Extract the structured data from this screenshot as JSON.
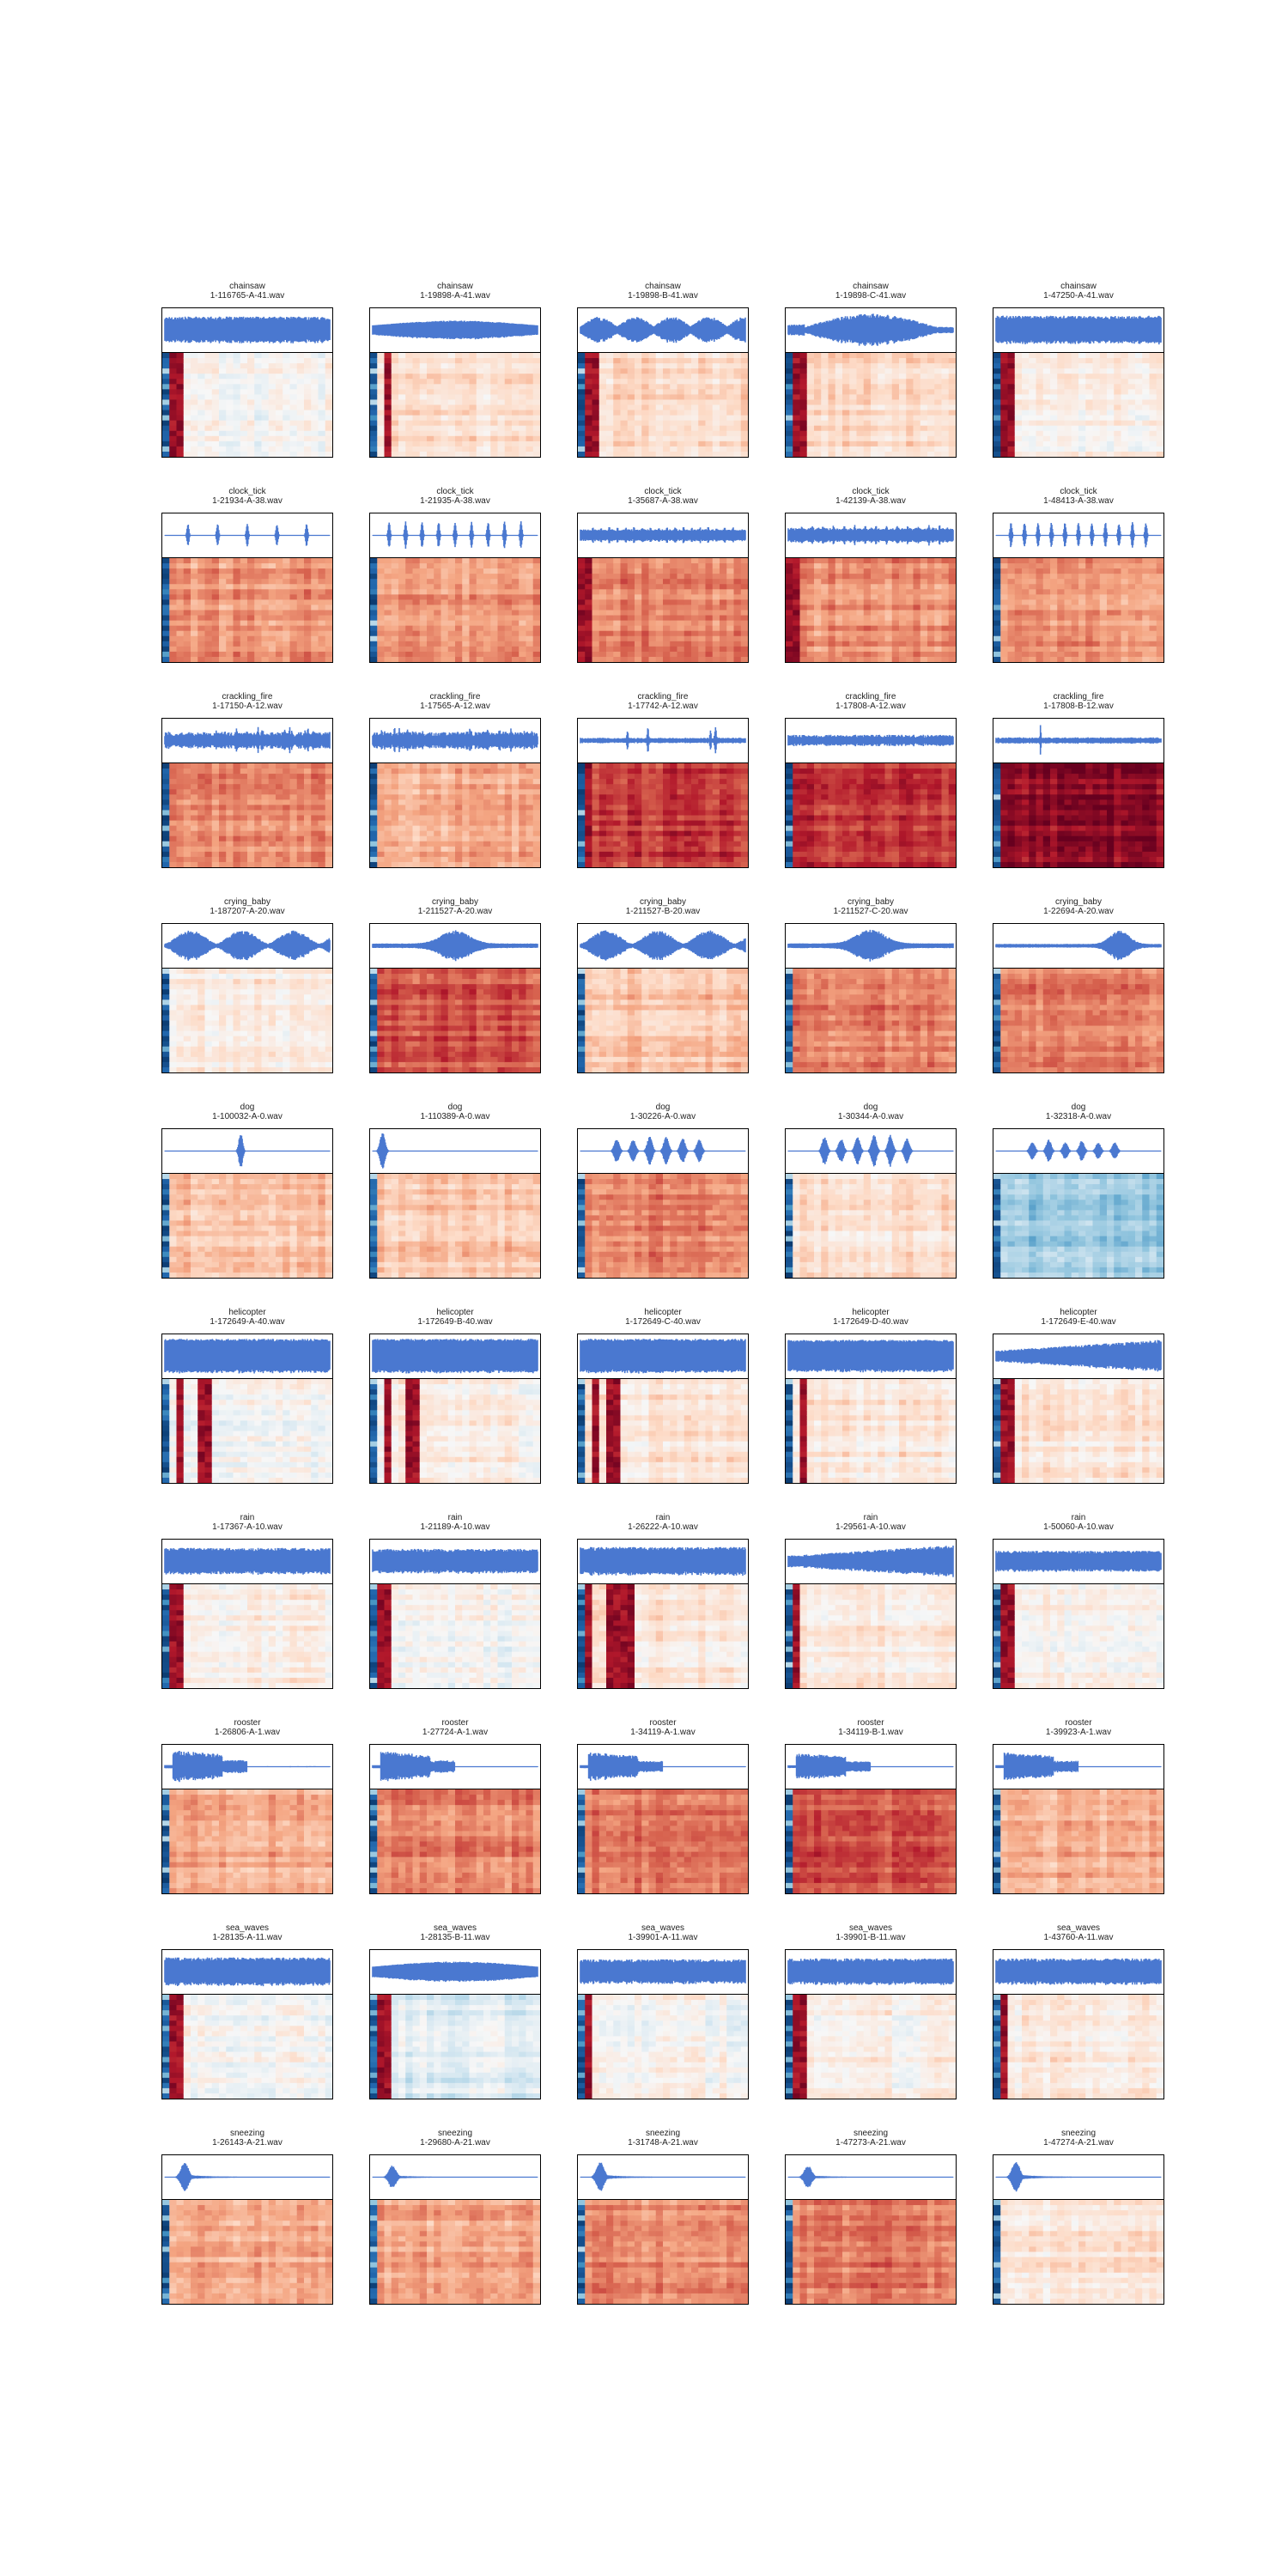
{
  "figure": {
    "rows": 10,
    "cols": 5
  },
  "colors": {
    "waveform": "#4a78d0",
    "colormap": "RdBu_r",
    "axes_border": "#000000",
    "background": "#ffffff"
  },
  "chart_data": {
    "type": "heatmap",
    "description_kind": "grid of audio clips: waveform above MFCC heatmap",
    "panels": [
      {
        "category": "chainsaw",
        "file": "1-116765-A-41.wav",
        "wave": "dense",
        "wave_amp": 0.7,
        "bg": 0.5,
        "red_cols": [
          0.08
        ],
        "blue_left": true
      },
      {
        "category": "chainsaw",
        "file": "1-19898-A-41.wav",
        "wave": "dense_swell",
        "wave_amp": 0.55,
        "bg": 0.58,
        "red_cols": [
          0.1
        ],
        "blue_left": true
      },
      {
        "category": "chainsaw",
        "file": "1-19898-B-41.wav",
        "wave": "bursts",
        "wave_amp": 0.7,
        "bg": 0.6,
        "red_cols": [
          0.08
        ],
        "blue_left": true
      },
      {
        "category": "chainsaw",
        "file": "1-19898-C-41.wav",
        "wave": "swell",
        "wave_amp": 0.85,
        "bg": 0.6,
        "red_cols": [
          0.08
        ],
        "blue_left": true
      },
      {
        "category": "chainsaw",
        "file": "1-47250-A-41.wav",
        "wave": "dense",
        "wave_amp": 0.75,
        "bg": 0.52,
        "red_cols": [
          0.08
        ],
        "blue_left": true
      },
      {
        "category": "clock_tick",
        "file": "1-21934-A-38.wav",
        "wave": "ticks",
        "ticks": 5,
        "wave_amp": 0.65,
        "bg": 0.72,
        "red_cols": [],
        "blue_left": true
      },
      {
        "category": "clock_tick",
        "file": "1-21935-A-38.wav",
        "wave": "ticks",
        "ticks": 9,
        "wave_amp": 0.75,
        "bg": 0.72,
        "red_cols": [],
        "blue_left": true
      },
      {
        "category": "clock_tick",
        "file": "1-35687-A-38.wav",
        "wave": "ticks_dense",
        "ticks": 18,
        "wave_amp": 0.45,
        "bg": 0.75,
        "red_cols": [
          0.05
        ],
        "blue_left": true
      },
      {
        "category": "clock_tick",
        "file": "1-42139-A-38.wav",
        "wave": "ticks_dense",
        "ticks": 14,
        "wave_amp": 0.55,
        "bg": 0.73,
        "red_cols": [
          0.04
        ],
        "blue_left": true
      },
      {
        "category": "clock_tick",
        "file": "1-48413-A-38.wav",
        "wave": "ticks",
        "ticks": 11,
        "wave_amp": 0.7,
        "bg": 0.72,
        "red_cols": [],
        "blue_left": true
      },
      {
        "category": "crackling_fire",
        "file": "1-17150-A-12.wav",
        "wave": "crackle",
        "wave_amp": 0.8,
        "bg": 0.74,
        "red_cols": [],
        "blue_left": true
      },
      {
        "category": "crackling_fire",
        "file": "1-17565-A-12.wav",
        "wave": "crackle",
        "wave_amp": 0.85,
        "bg": 0.7,
        "red_cols": [],
        "blue_left": true
      },
      {
        "category": "crackling_fire",
        "file": "1-17742-A-12.wav",
        "wave": "crackle_sparse",
        "wave_amp": 0.8,
        "bg": 0.85,
        "red_cols": [
          0.06
        ],
        "blue_left": true
      },
      {
        "category": "crackling_fire",
        "file": "1-17808-A-12.wav",
        "wave": "noise_small",
        "wave_amp": 0.3,
        "bg": 0.86,
        "red_cols": [],
        "blue_left": true
      },
      {
        "category": "crackling_fire",
        "file": "1-17808-B-12.wav",
        "wave": "spike_one",
        "wave_amp": 0.9,
        "bg": 0.95,
        "red_cols": [],
        "blue_left": true
      },
      {
        "category": "crying_baby",
        "file": "1-187207-A-20.wav",
        "wave": "cry",
        "wave_amp": 0.8,
        "bg": 0.55,
        "red_cols": [],
        "blue_left": true
      },
      {
        "category": "crying_baby",
        "file": "1-211527-A-20.wav",
        "wave": "cry_mid",
        "wave_amp": 0.75,
        "bg": 0.82,
        "red_cols": [],
        "blue_left": true
      },
      {
        "category": "crying_baby",
        "file": "1-211527-B-20.wav",
        "wave": "cry",
        "wave_amp": 0.8,
        "bg": 0.65,
        "red_cols": [],
        "blue_left": true
      },
      {
        "category": "crying_baby",
        "file": "1-211527-C-20.wav",
        "wave": "cry_mid",
        "wave_amp": 0.8,
        "bg": 0.75,
        "red_cols": [],
        "blue_left": true
      },
      {
        "category": "crying_baby",
        "file": "1-22694-A-20.wav",
        "wave": "cry_end",
        "wave_amp": 0.75,
        "bg": 0.75,
        "red_cols": [],
        "blue_left": true
      },
      {
        "category": "dog",
        "file": "1-100032-A-0.wav",
        "wave": "bark_one",
        "wave_amp": 0.95,
        "bg": 0.65,
        "red_cols": [],
        "blue_left": true
      },
      {
        "category": "dog",
        "file": "1-110389-A-0.wav",
        "wave": "bark_start",
        "wave_amp": 0.95,
        "bg": 0.64,
        "red_cols": [],
        "blue_left": true
      },
      {
        "category": "dog",
        "file": "1-30226-A-0.wav",
        "wave": "bark_many",
        "wave_amp": 0.8,
        "bg": 0.75,
        "red_cols": [],
        "blue_left": true
      },
      {
        "category": "dog",
        "file": "1-30344-A-0.wav",
        "wave": "bark_many",
        "wave_amp": 0.9,
        "bg": 0.58,
        "red_cols": [],
        "blue_left": true
      },
      {
        "category": "dog",
        "file": "1-32318-A-0.wav",
        "wave": "bark_many_small",
        "wave_amp": 0.6,
        "bg": 0.32,
        "red_cols": [],
        "blue_left": true
      },
      {
        "category": "helicopter",
        "file": "1-172649-A-40.wav",
        "wave": "dense_full",
        "wave_amp": 0.9,
        "bg": 0.5,
        "red_cols": [
          0.1,
          0.24
        ],
        "blue_left": true
      },
      {
        "category": "helicopter",
        "file": "1-172649-B-40.wav",
        "wave": "dense_full",
        "wave_amp": 0.9,
        "bg": 0.54,
        "red_cols": [
          0.1,
          0.24
        ],
        "blue_left": true
      },
      {
        "category": "helicopter",
        "file": "1-172649-C-40.wav",
        "wave": "dense_full",
        "wave_amp": 0.9,
        "bg": 0.56,
        "red_cols": [
          0.1,
          0.2
        ],
        "blue_left": true
      },
      {
        "category": "helicopter",
        "file": "1-172649-D-40.wav",
        "wave": "dense_full",
        "wave_amp": 0.85,
        "bg": 0.56,
        "red_cols": [
          0.1
        ],
        "blue_left": true
      },
      {
        "category": "helicopter",
        "file": "1-172649-E-40.wav",
        "wave": "ramp",
        "wave_amp": 0.85,
        "bg": 0.56,
        "red_cols": [
          0.08
        ],
        "blue_left": true
      },
      {
        "category": "rain",
        "file": "1-17367-A-10.wav",
        "wave": "dense",
        "wave_amp": 0.7,
        "bg": 0.54,
        "red_cols": [
          0.08
        ],
        "blue_left": true
      },
      {
        "category": "rain",
        "file": "1-21189-A-10.wav",
        "wave": "dense",
        "wave_amp": 0.65,
        "bg": 0.5,
        "red_cols": [
          0.08
        ],
        "blue_left": true
      },
      {
        "category": "rain",
        "file": "1-26222-A-10.wav",
        "wave": "dense",
        "wave_amp": 0.75,
        "bg": 0.56,
        "red_cols": [
          0.06,
          0.2,
          0.3
        ],
        "blue_left": true
      },
      {
        "category": "rain",
        "file": "1-29561-A-10.wav",
        "wave": "ramp",
        "wave_amp": 0.85,
        "bg": 0.55,
        "red_cols": [
          0.06
        ],
        "blue_left": true
      },
      {
        "category": "rain",
        "file": "1-50060-A-10.wav",
        "wave": "dense",
        "wave_amp": 0.55,
        "bg": 0.52,
        "red_cols": [
          0.08
        ],
        "blue_left": true
      },
      {
        "category": "rooster",
        "file": "1-26806-A-1.wav",
        "wave": "crow",
        "wave_amp": 0.85,
        "bg": 0.68,
        "red_cols": [],
        "blue_left": true
      },
      {
        "category": "rooster",
        "file": "1-27724-A-1.wav",
        "wave": "crow",
        "wave_amp": 0.8,
        "bg": 0.74,
        "red_cols": [],
        "blue_left": true
      },
      {
        "category": "rooster",
        "file": "1-34119-A-1.wav",
        "wave": "crow",
        "wave_amp": 0.75,
        "bg": 0.76,
        "red_cols": [],
        "blue_left": true
      },
      {
        "category": "rooster",
        "file": "1-34119-B-1.wav",
        "wave": "crow",
        "wave_amp": 0.7,
        "bg": 0.82,
        "red_cols": [],
        "blue_left": true
      },
      {
        "category": "rooster",
        "file": "1-39923-A-1.wav",
        "wave": "crow",
        "wave_amp": 0.75,
        "bg": 0.68,
        "red_cols": [],
        "blue_left": true
      },
      {
        "category": "sea_waves",
        "file": "1-28135-A-11.wav",
        "wave": "dense",
        "wave_amp": 0.75,
        "bg": 0.5,
        "red_cols": [
          0.08
        ],
        "blue_left": true
      },
      {
        "category": "sea_waves",
        "file": "1-28135-B-11.wav",
        "wave": "dense_swell",
        "wave_amp": 0.6,
        "bg": 0.44,
        "red_cols": [
          0.08
        ],
        "blue_left": true
      },
      {
        "category": "sea_waves",
        "file": "1-39901-A-11.wav",
        "wave": "dense",
        "wave_amp": 0.65,
        "bg": 0.5,
        "red_cols": [
          0.06
        ],
        "blue_left": true
      },
      {
        "category": "sea_waves",
        "file": "1-39901-B-11.wav",
        "wave": "dense",
        "wave_amp": 0.7,
        "bg": 0.53,
        "red_cols": [
          0.08
        ],
        "blue_left": true
      },
      {
        "category": "sea_waves",
        "file": "1-43760-A-11.wav",
        "wave": "dense",
        "wave_amp": 0.7,
        "bg": 0.55,
        "red_cols": [
          0.06
        ],
        "blue_left": true
      },
      {
        "category": "sneezing",
        "file": "1-26143-A-21.wav",
        "wave": "sneeze",
        "wave_amp": 0.8,
        "bg": 0.68,
        "red_cols": [],
        "blue_left": true
      },
      {
        "category": "sneezing",
        "file": "1-29680-A-21.wav",
        "wave": "sneeze",
        "wave_amp": 0.6,
        "bg": 0.7,
        "red_cols": [],
        "blue_left": true
      },
      {
        "category": "sneezing",
        "file": "1-31748-A-21.wav",
        "wave": "sneeze",
        "wave_amp": 0.8,
        "bg": 0.74,
        "red_cols": [],
        "blue_left": true
      },
      {
        "category": "sneezing",
        "file": "1-47273-A-21.wav",
        "wave": "sneeze",
        "wave_amp": 0.6,
        "bg": 0.76,
        "red_cols": [],
        "blue_left": true
      },
      {
        "category": "sneezing",
        "file": "1-47274-A-21.wav",
        "wave": "sneeze",
        "wave_amp": 0.85,
        "bg": 0.56,
        "red_cols": [],
        "blue_left": true
      }
    ]
  }
}
